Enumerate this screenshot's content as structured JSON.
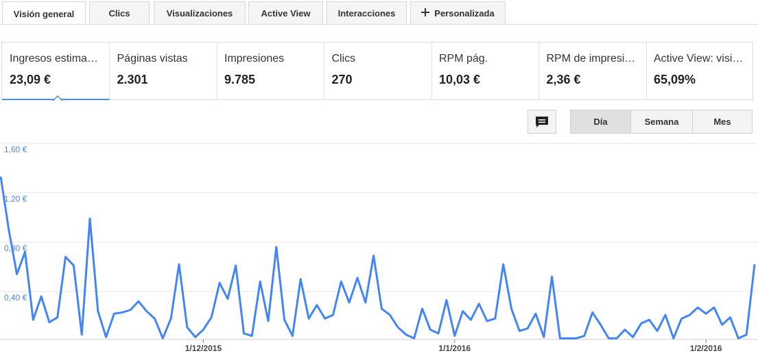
{
  "tabs": [
    "Visión general",
    "Clics",
    "Visualizaciones",
    "Active View",
    "Interacciones",
    "Personalizada"
  ],
  "metrics": [
    {
      "label": "Ingresos estima…",
      "value": "23,09 €"
    },
    {
      "label": "Páginas vistas",
      "value": "2.301"
    },
    {
      "label": "Impresiones",
      "value": "9.785"
    },
    {
      "label": "Clics",
      "value": "270"
    },
    {
      "label": "RPM pág.",
      "value": "10,03 €"
    },
    {
      "label": "RPM de impresi…",
      "value": "2,36 €"
    },
    {
      "label": "Active View: visi…",
      "value": "65,09%"
    }
  ],
  "periods": [
    "Día",
    "Semana",
    "Mes"
  ],
  "chart_data": {
    "type": "line",
    "color": "#4285f4",
    "grid": true,
    "categories": [
      null,
      null,
      null,
      null,
      null,
      null,
      null,
      null,
      null,
      null,
      null,
      null,
      null,
      null,
      null,
      null,
      null,
      null,
      null,
      null,
      null,
      null,
      null,
      null,
      null,
      "1/12/2015",
      null,
      null,
      null,
      null,
      null,
      null,
      null,
      null,
      null,
      null,
      null,
      null,
      null,
      null,
      null,
      null,
      null,
      null,
      null,
      null,
      null,
      null,
      null,
      null,
      null,
      null,
      null,
      null,
      null,
      null,
      "1/1/2016",
      null,
      null,
      null,
      null,
      null,
      null,
      null,
      null,
      null,
      null,
      null,
      null,
      null,
      null,
      null,
      null,
      null,
      null,
      null,
      null,
      null,
      null,
      null,
      null,
      null,
      null,
      null,
      null,
      null,
      null,
      "1/2/2016",
      null,
      null,
      null,
      null,
      null,
      null
    ],
    "values": [
      1.33,
      0.9,
      0.54,
      0.72,
      0.17,
      0.36,
      0.15,
      0.19,
      0.68,
      0.61,
      0.05,
      0.99,
      0.24,
      0.03,
      0.22,
      0.23,
      0.25,
      0.32,
      0.24,
      0.18,
      0.02,
      0.18,
      0.62,
      0.11,
      0.03,
      0.09,
      0.19,
      0.47,
      0.34,
      0.61,
      0.06,
      0.04,
      0.48,
      0.16,
      0.76,
      0.17,
      0.04,
      0.5,
      0.18,
      0.29,
      0.18,
      0.21,
      0.48,
      0.31,
      0.51,
      0.31,
      0.69,
      0.26,
      0.21,
      0.11,
      0.05,
      0.02,
      0.26,
      0.09,
      0.06,
      0.33,
      0.04,
      0.24,
      0.17,
      0.3,
      0.16,
      0.18,
      0.62,
      0.26,
      0.08,
      0.1,
      0.22,
      0.03,
      0.52,
      0.02,
      0.02,
      0.02,
      0.04,
      0.23,
      0.13,
      0.02,
      0.02,
      0.09,
      0.03,
      0.14,
      0.17,
      0.08,
      0.21,
      0.02,
      0.18,
      0.21,
      0.27,
      0.22,
      0.27,
      0.13,
      0.19,
      0.02,
      0.05,
      0.62
    ],
    "ylim": [
      0,
      1.6
    ],
    "yticks": [
      {
        "value": 0.4,
        "label": "0,40 €"
      },
      {
        "value": 0.8,
        "label": "0,80 €"
      },
      {
        "value": 1.2,
        "label": "1,20 €"
      },
      {
        "value": 1.6,
        "label": "1,60 €"
      }
    ]
  }
}
